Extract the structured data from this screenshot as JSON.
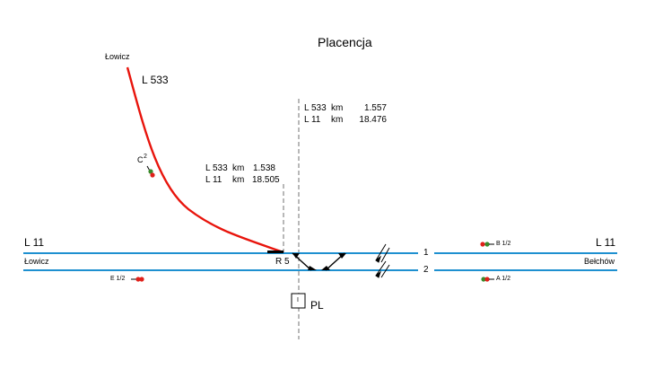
{
  "title": "Placencja",
  "lines": {
    "l533_label": "L 533",
    "l11_left_label": "L 11",
    "l11_right_label": "L 11"
  },
  "places": {
    "lowicz_top": "Łowicz",
    "lowicz_left": "Łowicz",
    "belchow": "Bełchów"
  },
  "kilometrage": {
    "left": {
      "row1": {
        "line": "L 533",
        "unit": "km",
        "value": "1.538"
      },
      "row2": {
        "line": "L 11",
        "unit": "km",
        "value": "18.505"
      }
    },
    "right": {
      "row1": {
        "line": "L 533",
        "unit": "km",
        "value": "1.557"
      },
      "row2": {
        "line": "L 11",
        "unit": "km",
        "value": "18.476"
      }
    }
  },
  "tracks": {
    "track1": "1",
    "track2": "2"
  },
  "signals": {
    "c": {
      "letter": "C",
      "number": "2"
    },
    "e": "E 1/2",
    "b": "B 1/2",
    "a": "A 1/2"
  },
  "switch": "R 5",
  "post": {
    "label": "PL",
    "box_mark": "I"
  },
  "colors": {
    "track": "#1e90d0",
    "line_533": "#e8140c",
    "signal_red": "#e0201a",
    "signal_green": "#3a8a2a",
    "axis": "#707070"
  }
}
